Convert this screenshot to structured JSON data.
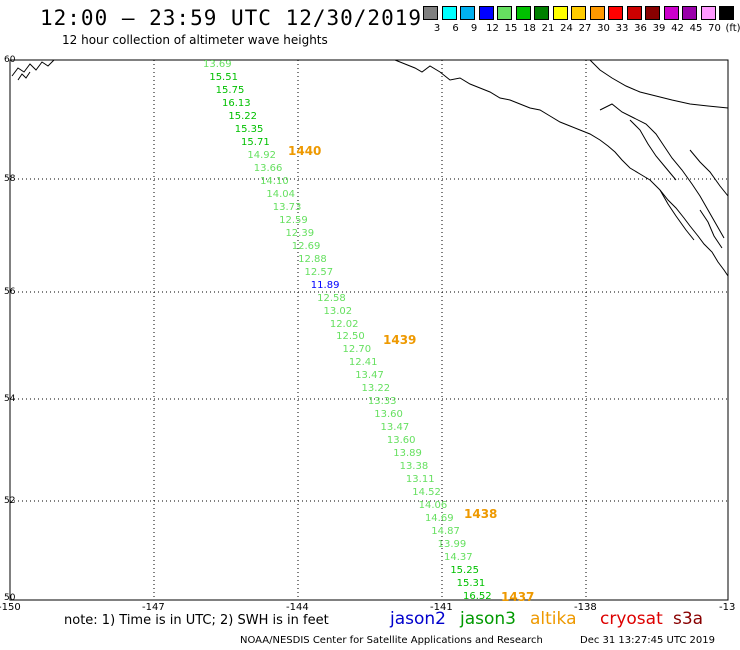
{
  "header": {
    "title": "12:00 – 23:59 UTC 12/30/2019",
    "subtitle": "12 hour collection of altimeter wave heights"
  },
  "legend": {
    "labels": [
      "3",
      "6",
      "9",
      "12",
      "15",
      "18",
      "21",
      "24",
      "27",
      "30",
      "33",
      "36",
      "39",
      "42",
      "45",
      "70",
      "(ft)"
    ],
    "colors": [
      "#808080",
      "#00ffff",
      "#00b0f0",
      "#0000ff",
      "#66e060",
      "#00c000",
      "#008000",
      "#ffff00",
      "#ffcc00",
      "#ff9900",
      "#ff0000",
      "#cc0000",
      "#880000",
      "#cc00cc",
      "#9900aa",
      "#ff99ff",
      "#000000"
    ]
  },
  "map": {
    "lat_labels": [
      "60",
      "58",
      "56",
      "54",
      "52",
      "50"
    ],
    "lon_labels": [
      "-150",
      "-147",
      "-144",
      "-141",
      "-138",
      "-13"
    ],
    "swh_points": [
      {
        "t": "13.69",
        "c": "#66e060"
      },
      {
        "t": "15.51",
        "c": "#00c000"
      },
      {
        "t": "15.75",
        "c": "#00c000"
      },
      {
        "t": "16.13",
        "c": "#00c000"
      },
      {
        "t": "15.22",
        "c": "#00c000"
      },
      {
        "t": "15.35",
        "c": "#00c000"
      },
      {
        "t": "15.71",
        "c": "#00c000"
      },
      {
        "t": "14.92",
        "c": "#66e060"
      },
      {
        "t": "13.66",
        "c": "#66e060"
      },
      {
        "t": "14.10",
        "c": "#66e060"
      },
      {
        "t": "14.04",
        "c": "#66e060"
      },
      {
        "t": "13.73",
        "c": "#66e060"
      },
      {
        "t": "12.59",
        "c": "#66e060"
      },
      {
        "t": "12.39",
        "c": "#66e060"
      },
      {
        "t": "12.69",
        "c": "#66e060"
      },
      {
        "t": "12.88",
        "c": "#66e060"
      },
      {
        "t": "12.57",
        "c": "#66e060"
      },
      {
        "t": "11.89",
        "c": "#0000ff"
      },
      {
        "t": "12.58",
        "c": "#66e060"
      },
      {
        "t": "13.02",
        "c": "#66e060"
      },
      {
        "t": "12.02",
        "c": "#66e060"
      },
      {
        "t": "12.50",
        "c": "#66e060"
      },
      {
        "t": "12.70",
        "c": "#66e060"
      },
      {
        "t": "12.41",
        "c": "#66e060"
      },
      {
        "t": "13.47",
        "c": "#66e060"
      },
      {
        "t": "13.22",
        "c": "#66e060"
      },
      {
        "t": "13.33",
        "c": "#66e060"
      },
      {
        "t": "13.60",
        "c": "#66e060"
      },
      {
        "t": "13.47",
        "c": "#66e060"
      },
      {
        "t": "13.60",
        "c": "#66e060"
      },
      {
        "t": "13.89",
        "c": "#66e060"
      },
      {
        "t": "13.38",
        "c": "#66e060"
      },
      {
        "t": "13.11",
        "c": "#66e060"
      },
      {
        "t": "14.52",
        "c": "#66e060"
      },
      {
        "t": "14.06",
        "c": "#66e060"
      },
      {
        "t": "14.69",
        "c": "#66e060"
      },
      {
        "t": "14.87",
        "c": "#66e060"
      },
      {
        "t": "13.99",
        "c": "#66e060"
      },
      {
        "t": "14.37",
        "c": "#66e060"
      },
      {
        "t": "15.25",
        "c": "#00c000"
      },
      {
        "t": "15.31",
        "c": "#00c000"
      },
      {
        "t": "16.52",
        "c": "#00c000"
      }
    ],
    "time_labels": [
      "1440",
      "1439",
      "1438",
      "1437"
    ]
  },
  "footer": {
    "note": "note: 1) Time is in UTC; 2) SWH is in feet",
    "satellites": [
      {
        "name": "jason2",
        "color": "#0000cc"
      },
      {
        "name": "jason3",
        "color": "#009900"
      },
      {
        "name": "altika",
        "color": "#ee9900"
      },
      {
        "name": "cryosat",
        "color": "#dd0000"
      },
      {
        "name": "s3a",
        "color": "#880000"
      }
    ],
    "credit": "NOAA/NESDIS Center for Satellite Applications and Research",
    "timestamp": "Dec 31 13:27:45 UTC 2019"
  }
}
